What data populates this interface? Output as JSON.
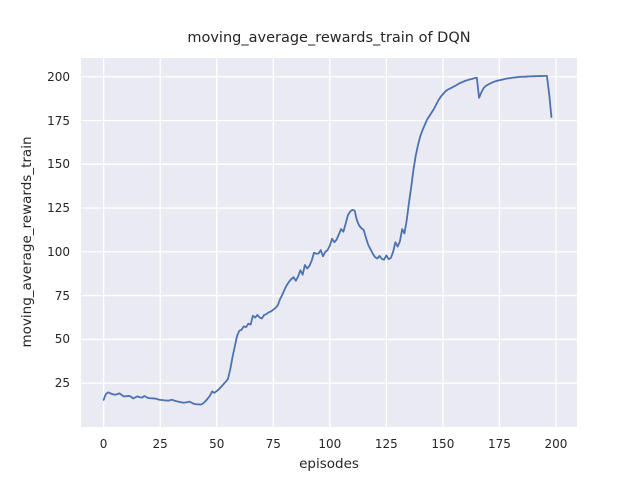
{
  "chart_data": {
    "type": "line",
    "title": "moving_average_rewards_train of DQN",
    "xlabel": "episodes",
    "ylabel": "moving_average_rewards_train",
    "x_ticks": [
      0,
      25,
      50,
      75,
      100,
      125,
      150,
      175,
      200
    ],
    "y_ticks": [
      25,
      50,
      75,
      100,
      125,
      150,
      175,
      200
    ],
    "xlim": [
      -10,
      209.3
    ],
    "ylim": [
      0,
      210.7
    ],
    "grid": true,
    "legend": "none",
    "style": {
      "line_color": "#4c72b0",
      "line_width": 1.8,
      "plot_background": "#eaeaf2",
      "grid_color": "#ffffff",
      "text_color": "#262626",
      "figure_background": "#ffffff"
    },
    "series": [
      {
        "name": "moving_average_rewards_train",
        "points": [
          [
            0,
            15.5
          ],
          [
            1,
            18.8
          ],
          [
            2,
            19.8
          ],
          [
            3,
            19.2
          ],
          [
            4,
            18.7
          ],
          [
            5,
            18.4
          ],
          [
            6,
            18.8
          ],
          [
            7,
            19.2
          ],
          [
            8,
            18.3
          ],
          [
            9,
            17.4
          ],
          [
            10,
            17.6
          ],
          [
            11,
            17.8
          ],
          [
            12,
            17.4
          ],
          [
            13,
            16.3
          ],
          [
            14,
            16.9
          ],
          [
            15,
            17.5
          ],
          [
            16,
            17.0
          ],
          [
            17,
            16.8
          ],
          [
            18,
            17.7
          ],
          [
            19,
            17.0
          ],
          [
            20,
            16.5
          ],
          [
            21,
            16.4
          ],
          [
            22,
            16.3
          ],
          [
            23,
            16.2
          ],
          [
            24,
            15.8
          ],
          [
            25,
            15.5
          ],
          [
            26,
            15.4
          ],
          [
            27,
            15.2
          ],
          [
            28,
            15.1
          ],
          [
            29,
            15.1
          ],
          [
            30,
            15.6
          ],
          [
            31,
            15.2
          ],
          [
            32,
            14.8
          ],
          [
            33,
            14.5
          ],
          [
            34,
            14.2
          ],
          [
            35,
            13.9
          ],
          [
            36,
            13.9
          ],
          [
            37,
            14.2
          ],
          [
            38,
            14.5
          ],
          [
            39,
            13.8
          ],
          [
            40,
            13.2
          ],
          [
            41,
            13.0
          ],
          [
            42,
            12.9
          ],
          [
            43,
            12.8
          ],
          [
            44,
            13.5
          ],
          [
            45,
            14.7
          ],
          [
            46,
            16.2
          ],
          [
            47,
            17.9
          ],
          [
            48,
            20.3
          ],
          [
            49,
            19.5
          ],
          [
            50,
            20.5
          ],
          [
            51,
            21.6
          ],
          [
            52,
            23.0
          ],
          [
            53,
            24.4
          ],
          [
            54,
            25.8
          ],
          [
            55,
            27.5
          ],
          [
            56,
            33
          ],
          [
            57,
            40
          ],
          [
            58,
            46
          ],
          [
            59,
            52
          ],
          [
            60,
            55
          ],
          [
            61,
            55.5
          ],
          [
            62,
            57.5
          ],
          [
            63,
            57
          ],
          [
            64,
            59
          ],
          [
            65,
            58.5
          ],
          [
            66,
            63.5
          ],
          [
            67,
            62.5
          ],
          [
            68,
            64
          ],
          [
            69,
            62.5
          ],
          [
            70,
            62
          ],
          [
            71,
            64
          ],
          [
            72,
            64.5
          ],
          [
            73,
            65.5
          ],
          [
            74,
            66
          ],
          [
            75,
            67
          ],
          [
            76,
            68
          ],
          [
            77,
            69.5
          ],
          [
            78,
            73
          ],
          [
            79,
            75.5
          ],
          [
            80,
            78.5
          ],
          [
            81,
            81
          ],
          [
            82,
            83
          ],
          [
            83,
            84.5
          ],
          [
            84,
            85.5
          ],
          [
            85,
            83.5
          ],
          [
            86,
            86
          ],
          [
            87,
            89.5
          ],
          [
            88,
            87
          ],
          [
            89,
            92.5
          ],
          [
            90,
            90.5
          ],
          [
            91,
            92
          ],
          [
            92,
            95
          ],
          [
            93,
            99.5
          ],
          [
            94,
            99
          ],
          [
            95,
            99
          ],
          [
            96,
            101
          ],
          [
            97,
            97.5
          ],
          [
            98,
            100
          ],
          [
            99,
            101
          ],
          [
            100,
            103.5
          ],
          [
            101,
            107.5
          ],
          [
            102,
            105.5
          ],
          [
            103,
            107
          ],
          [
            104,
            110
          ],
          [
            105,
            113
          ],
          [
            106,
            111.5
          ],
          [
            107,
            116
          ],
          [
            108,
            121
          ],
          [
            109,
            123
          ],
          [
            110,
            124
          ],
          [
            111,
            123.5
          ],
          [
            112,
            118
          ],
          [
            113,
            115
          ],
          [
            114,
            113.5
          ],
          [
            115,
            112.5
          ],
          [
            116,
            108
          ],
          [
            117,
            104
          ],
          [
            118,
            101.5
          ],
          [
            119,
            99
          ],
          [
            120,
            97
          ],
          [
            121,
            96.2
          ],
          [
            122,
            97.7
          ],
          [
            123,
            96
          ],
          [
            124,
            95.5
          ],
          [
            125,
            98
          ],
          [
            126,
            95.8
          ],
          [
            127,
            96.5
          ],
          [
            128,
            100
          ],
          [
            129,
            105.5
          ],
          [
            130,
            103
          ],
          [
            131,
            106
          ],
          [
            132,
            113
          ],
          [
            133,
            110.5
          ],
          [
            134,
            118
          ],
          [
            135,
            128
          ],
          [
            136,
            137
          ],
          [
            137,
            147
          ],
          [
            138,
            155
          ],
          [
            139,
            161
          ],
          [
            140,
            166
          ],
          [
            141,
            169.5
          ],
          [
            142,
            172.5
          ],
          [
            143,
            175.5
          ],
          [
            144,
            177.5
          ],
          [
            145,
            179.5
          ],
          [
            146,
            181.5
          ],
          [
            147,
            184
          ],
          [
            148,
            186.5
          ],
          [
            149,
            188.5
          ],
          [
            150,
            190
          ],
          [
            151,
            191.5
          ],
          [
            152,
            192.5
          ],
          [
            153,
            193.2
          ],
          [
            154,
            193.8
          ],
          [
            155,
            194.5
          ],
          [
            156,
            195.2
          ],
          [
            157,
            196
          ],
          [
            158,
            196.6
          ],
          [
            159,
            197.2
          ],
          [
            160,
            197.7
          ],
          [
            161,
            198.1
          ],
          [
            162,
            198.5
          ],
          [
            163,
            198.8
          ],
          [
            164,
            199.2
          ],
          [
            165,
            199.5
          ],
          [
            166,
            188
          ],
          [
            167,
            191
          ],
          [
            168,
            193.5
          ],
          [
            169,
            194.8
          ],
          [
            170,
            195.5
          ],
          [
            171,
            196.2
          ],
          [
            172,
            196.8
          ],
          [
            173,
            197.3
          ],
          [
            174,
            197.7
          ],
          [
            175,
            198
          ],
          [
            176,
            198.3
          ],
          [
            177,
            198.6
          ],
          [
            178,
            198.9
          ],
          [
            179,
            199.1
          ],
          [
            180,
            199.3
          ],
          [
            181,
            199.5
          ],
          [
            182,
            199.6
          ],
          [
            183,
            199.8
          ],
          [
            184,
            199.9
          ],
          [
            185,
            200
          ],
          [
            186,
            200
          ],
          [
            187,
            200.1
          ],
          [
            188,
            200.2
          ],
          [
            189,
            200.2
          ],
          [
            190,
            200.3
          ],
          [
            191,
            200.3
          ],
          [
            192,
            200.4
          ],
          [
            193,
            200.4
          ],
          [
            194,
            200.4
          ],
          [
            195,
            200.5
          ],
          [
            196,
            200.5
          ],
          [
            197,
            190
          ],
          [
            198,
            177
          ]
        ]
      }
    ]
  }
}
